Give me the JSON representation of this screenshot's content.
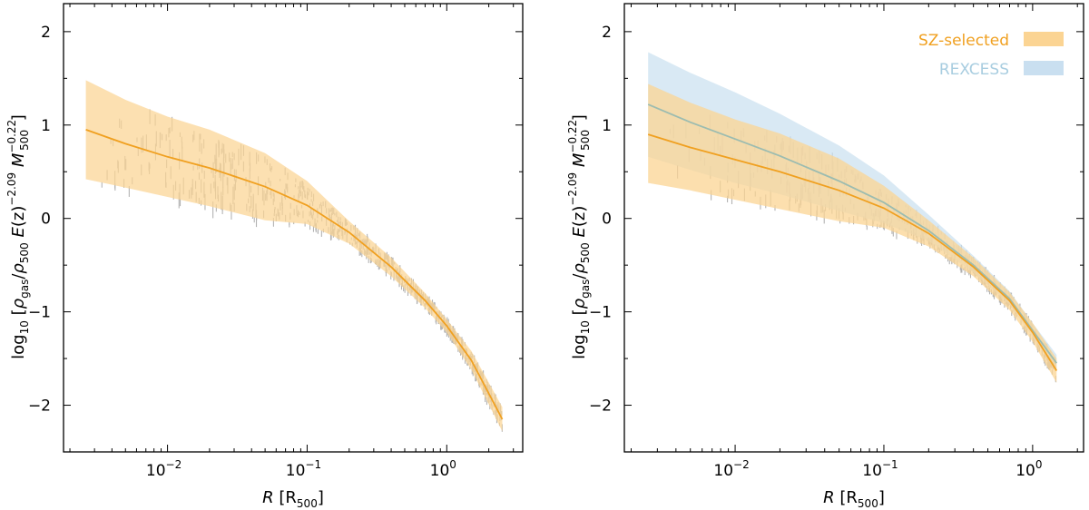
{
  "colors": {
    "sz": "#f0a020",
    "sz_band": "#fbd493",
    "rexcess_band": "#c9dff0",
    "rexcess_line": "#9cbcb0",
    "rexcess_text": "#a8cde0",
    "scatter": "#9a9a9a"
  },
  "legend": {
    "sz_label": "SZ-selected",
    "rexcess_label": "REXCESS"
  },
  "chart_data": [
    {
      "type": "line",
      "x_scale": "log",
      "xlabel": "R [R500]",
      "ylabel": "log10 [ρgas/ρ500 E(z)^-2.09 M500^-0.22]",
      "xlim": [
        0.0018,
        3.5
      ],
      "ylim": [
        -2.5,
        2.3
      ],
      "x_ticks": [
        {
          "value": 0.01,
          "base": "10",
          "exp": "−2"
        },
        {
          "value": 0.1,
          "base": "10",
          "exp": "−1"
        },
        {
          "value": 1,
          "base": "10",
          "exp": "0"
        }
      ],
      "y_ticks": [
        {
          "value": 2,
          "label": "2"
        },
        {
          "value": 1,
          "label": "1"
        },
        {
          "value": 0,
          "label": "0"
        },
        {
          "value": -1,
          "label": "−1"
        },
        {
          "value": -2,
          "label": "−2"
        }
      ],
      "grid": false,
      "series": [
        {
          "name": "SZ-selected",
          "x": [
            0.0026,
            0.005,
            0.01,
            0.02,
            0.05,
            0.1,
            0.2,
            0.4,
            0.7,
            1.0,
            1.5,
            2.5
          ],
          "y": [
            0.95,
            0.8,
            0.66,
            0.54,
            0.34,
            0.14,
            -0.15,
            -0.52,
            -0.88,
            -1.15,
            -1.52,
            -2.15
          ],
          "lower": [
            0.42,
            0.33,
            0.23,
            0.13,
            -0.02,
            -0.06,
            -0.27,
            -0.62,
            -0.96,
            -1.22,
            -1.62,
            -2.28
          ],
          "upper": [
            1.48,
            1.27,
            1.09,
            0.95,
            0.7,
            0.4,
            -0.03,
            -0.42,
            -0.8,
            -1.08,
            -1.42,
            -2.02
          ]
        }
      ]
    },
    {
      "type": "line",
      "x_scale": "log",
      "xlabel": "R [R500]",
      "ylabel": "log10 [ρgas/ρ500 E(z)^-2.09 M500^-0.22]",
      "xlim": [
        0.0018,
        2.2
      ],
      "ylim": [
        -2.5,
        2.3
      ],
      "x_ticks": [
        {
          "value": 0.01,
          "base": "10",
          "exp": "−2"
        },
        {
          "value": 0.1,
          "base": "10",
          "exp": "−1"
        },
        {
          "value": 1,
          "base": "10",
          "exp": "0"
        }
      ],
      "y_ticks": [
        {
          "value": 2,
          "label": "2"
        },
        {
          "value": 1,
          "label": "1"
        },
        {
          "value": 0,
          "label": "0"
        },
        {
          "value": -1,
          "label": "−1"
        },
        {
          "value": -2,
          "label": "−2"
        }
      ],
      "grid": false,
      "legend_position": "top-right",
      "series": [
        {
          "name": "REXCESS",
          "x": [
            0.0026,
            0.005,
            0.01,
            0.02,
            0.05,
            0.1,
            0.2,
            0.4,
            0.7,
            1.0,
            1.45
          ],
          "y": [
            1.22,
            1.03,
            0.85,
            0.67,
            0.4,
            0.17,
            -0.13,
            -0.5,
            -0.86,
            -1.2,
            -1.55
          ],
          "lower": [
            0.66,
            0.52,
            0.38,
            0.26,
            0.08,
            -0.05,
            -0.24,
            -0.58,
            -0.92,
            -1.27,
            -1.64
          ],
          "upper": [
            1.78,
            1.56,
            1.35,
            1.12,
            0.78,
            0.46,
            0.04,
            -0.4,
            -0.78,
            -1.12,
            -1.46
          ]
        },
        {
          "name": "SZ-selected",
          "x": [
            0.0026,
            0.005,
            0.01,
            0.02,
            0.05,
            0.1,
            0.2,
            0.4,
            0.7,
            1.0,
            1.45
          ],
          "y": [
            0.9,
            0.76,
            0.63,
            0.5,
            0.3,
            0.11,
            -0.16,
            -0.52,
            -0.88,
            -1.22,
            -1.63
          ],
          "lower": [
            0.38,
            0.3,
            0.2,
            0.1,
            -0.03,
            -0.1,
            -0.3,
            -0.62,
            -0.98,
            -1.32,
            -1.76
          ],
          "upper": [
            1.44,
            1.24,
            1.06,
            0.91,
            0.64,
            0.35,
            -0.02,
            -0.42,
            -0.79,
            -1.12,
            -1.5
          ]
        }
      ]
    }
  ]
}
